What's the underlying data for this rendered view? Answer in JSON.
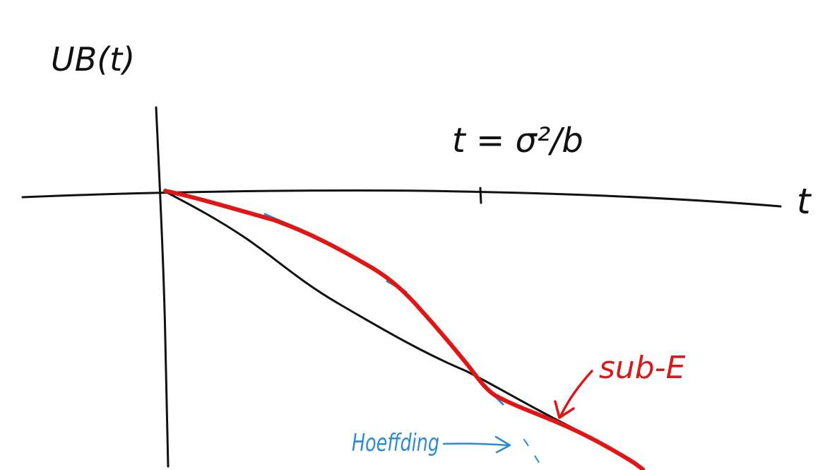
{
  "labels": {
    "y_axis": "UB(t)",
    "x_axis": "t",
    "threshold": "t = σ²/b",
    "sub_exponential": "sub-E",
    "hoeffding": "Hoeffding"
  },
  "colors": {
    "ink": "#111111",
    "sub_exponential_curve": "#e01616",
    "hoeffding_annotation": "#2a8ad6",
    "background": "#ffffff"
  }
}
